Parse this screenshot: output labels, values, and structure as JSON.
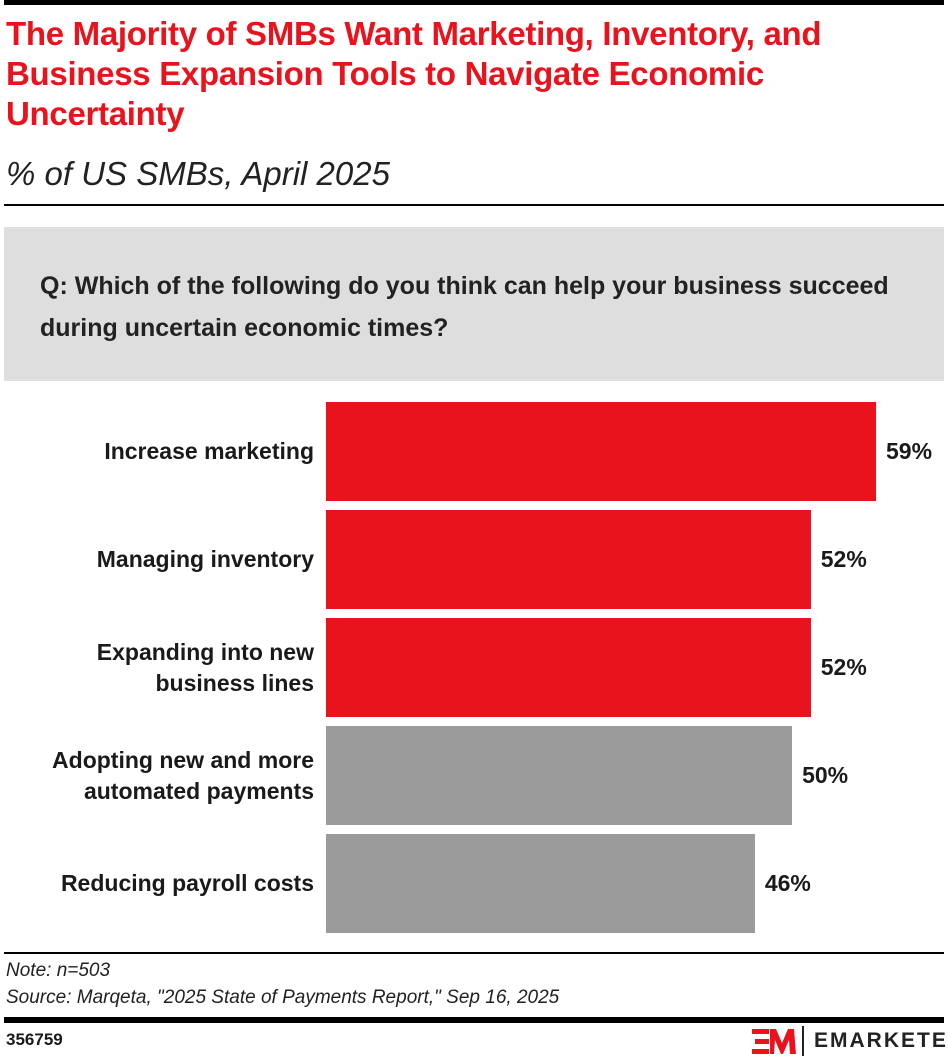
{
  "title": "The Majority of SMBs Want Marketing, Inventory, and Business Expansion Tools to Navigate Economic Uncertainty",
  "subtitle": "% of US SMBs, April 2025",
  "question": "Q: Which of the following do you think can help your business succeed during uncertain economic times?",
  "chart_data": {
    "type": "bar",
    "orientation": "horizontal",
    "categories": [
      "Increase marketing",
      "Managing inventory",
      "Expanding into new business lines",
      "Adopting new and more automated payments",
      "Reducing payroll costs"
    ],
    "values": [
      59,
      52,
      52,
      50,
      46
    ],
    "value_labels": [
      "59%",
      "52%",
      "52%",
      "50%",
      "46%"
    ],
    "colors": [
      "#e8131d",
      "#e8131d",
      "#e8131d",
      "#9b9b9b",
      "#9b9b9b"
    ],
    "xlim": [
      0,
      59
    ],
    "grid": false
  },
  "note": "Note: n=503",
  "source": "Source: Marqeta, \"2025 State of Payments Report,\" Sep 16, 2025",
  "chart_id": "356759",
  "brand": "EMARKETER",
  "brand_color": "#e8131d"
}
